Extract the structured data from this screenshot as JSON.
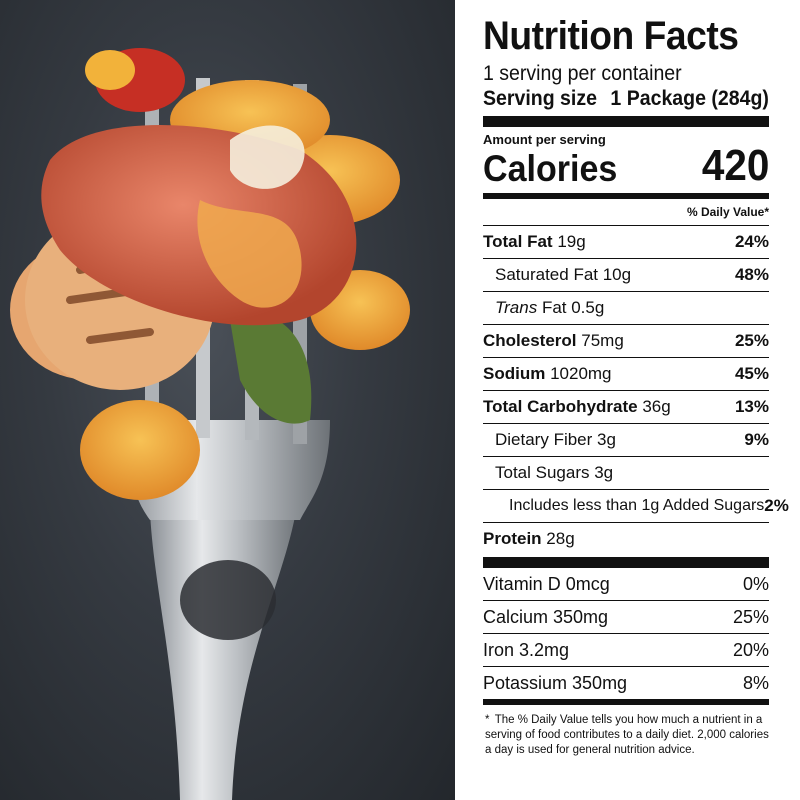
{
  "photo": {
    "description_icon": "fork-with-food-image"
  },
  "label": {
    "title": "Nutrition Facts",
    "servings_per_container": "1 serving per container",
    "serving_size_label": "Serving size",
    "serving_size_value": "1 Package (284g)",
    "amount_per_serving": "Amount per serving",
    "calories_label": "Calories",
    "calories_value": "420",
    "dv_header": "% Daily Value*",
    "nutrients": [
      {
        "bold_name": "Total Fat",
        "amount": "19g",
        "pct": "24%"
      },
      {
        "bold_name": "",
        "amount": "Saturated Fat 10g",
        "pct": "48%"
      },
      {
        "bold_name": "",
        "italic": "Trans",
        "amount": "Fat 0.5g",
        "pct": ""
      },
      {
        "bold_name": "Cholesterol",
        "amount": "75mg",
        "pct": "25%"
      },
      {
        "bold_name": "Sodium",
        "amount": "1020mg",
        "pct": "45%"
      },
      {
        "bold_name": "Total Carbohydrate",
        "amount": "36g",
        "pct": "13%"
      },
      {
        "bold_name": "",
        "amount": "Dietary Fiber 3g",
        "pct": "9%"
      },
      {
        "bold_name": "",
        "amount": "Total Sugars 3g",
        "pct": ""
      },
      {
        "bold_name": "",
        "amount": "Includes less than 1g Added Sugars",
        "pct": "2%"
      },
      {
        "bold_name": "Protein",
        "amount": "28g",
        "pct": ""
      }
    ],
    "vitamins": [
      {
        "name": "Vitamin D 0mcg",
        "pct": "0%"
      },
      {
        "name": "Calcium 350mg",
        "pct": "25%"
      },
      {
        "name": "Iron 3.2mg",
        "pct": "20%"
      },
      {
        "name": "Potassium 350mg",
        "pct": "8%"
      }
    ],
    "footnote_star": "*",
    "footnote": "The % Daily Value tells you how much a nutrient in a serving of food contributes to a daily diet. 2,000 calories a day is used for general nutrition advice."
  }
}
